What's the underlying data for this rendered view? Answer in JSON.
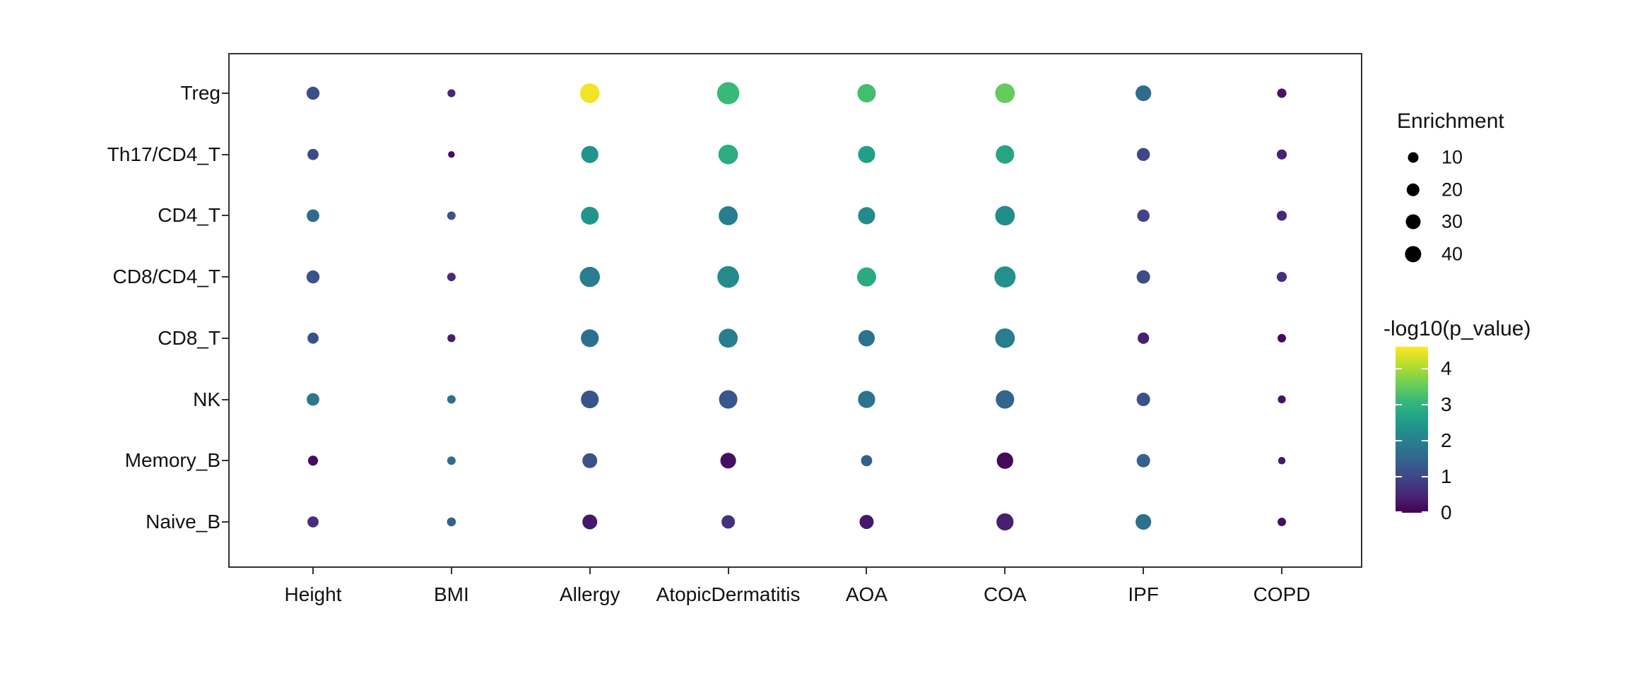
{
  "figure": {
    "background": "#ffffff",
    "panel_border_color": "#333333",
    "text_color": "#111111"
  },
  "legend_size": {
    "title": "Enrichment",
    "values": [
      "10",
      "20",
      "30",
      "40"
    ]
  },
  "legend_color": {
    "title": "-log10(p_value)",
    "ticks": [
      "4",
      "3",
      "2",
      "1",
      "0"
    ]
  },
  "chart_data": {
    "type": "scatter",
    "subtype": "bubble-matrix",
    "title": "",
    "xlabel": "",
    "ylabel": "",
    "grid": false,
    "x_categories": [
      "Height",
      "BMI",
      "Allergy",
      "AtopicDermatitis",
      "AOA",
      "COA",
      "IPF",
      "COPD"
    ],
    "y_categories": [
      "Treg",
      "Th17/CD4_T",
      "CD4_T",
      "CD8/CD4_T",
      "CD8_T",
      "NK",
      "Memory_B",
      "Naive_B"
    ],
    "size_variable": "Enrichment",
    "color_variable": "-log10(p_value)",
    "enrichment": [
      [
        20,
        3,
        65,
        90,
        55,
        65,
        35,
        6
      ],
      [
        12,
        1,
        45,
        65,
        45,
        55,
        20,
        8
      ],
      [
        18,
        4,
        50,
        60,
        45,
        65,
        17,
        8
      ],
      [
        20,
        4,
        70,
        85,
        60,
        80,
        22,
        8
      ],
      [
        12,
        3,
        50,
        60,
        40,
        65,
        13,
        4
      ],
      [
        18,
        4,
        50,
        55,
        45,
        55,
        22,
        3
      ],
      [
        8,
        4,
        30,
        35,
        12,
        40,
        22,
        2
      ],
      [
        12,
        5,
        30,
        22,
        26,
        45,
        35,
        4
      ]
    ],
    "neg_log10_p": [
      [
        1.1,
        0.5,
        4.5,
        3.1,
        3.2,
        3.5,
        1.6,
        0.25
      ],
      [
        1.05,
        0.15,
        2.4,
        2.85,
        2.6,
        2.7,
        1.0,
        0.45
      ],
      [
        1.6,
        1.2,
        2.4,
        1.95,
        2.2,
        2.25,
        0.95,
        0.5
      ],
      [
        1.2,
        0.55,
        1.95,
        2.2,
        2.8,
        2.3,
        1.1,
        0.6
      ],
      [
        1.15,
        0.35,
        1.7,
        1.95,
        1.75,
        1.95,
        0.4,
        0.1
      ],
      [
        1.85,
        1.7,
        1.2,
        1.25,
        1.75,
        1.5,
        1.15,
        0.25
      ],
      [
        0.15,
        1.65,
        1.15,
        0.2,
        1.4,
        0.1,
        1.45,
        0.3
      ],
      [
        0.6,
        1.45,
        0.3,
        0.65,
        0.3,
        0.4,
        1.7,
        0.2
      ]
    ],
    "size_legend": {
      "title": "Enrichment",
      "values": [
        10,
        20,
        30,
        40
      ]
    },
    "color_scale": {
      "name": "viridis",
      "title": "-log10(p_value)",
      "domain": [
        0,
        4.6
      ],
      "tick_values": [
        4,
        3,
        2,
        1,
        0
      ],
      "stops": [
        "#440154",
        "#482878",
        "#3e4989",
        "#31688e",
        "#26828e",
        "#1f9e89",
        "#35b779",
        "#6ece58",
        "#b5de2b",
        "#fde725"
      ]
    },
    "legend_position": "right"
  }
}
